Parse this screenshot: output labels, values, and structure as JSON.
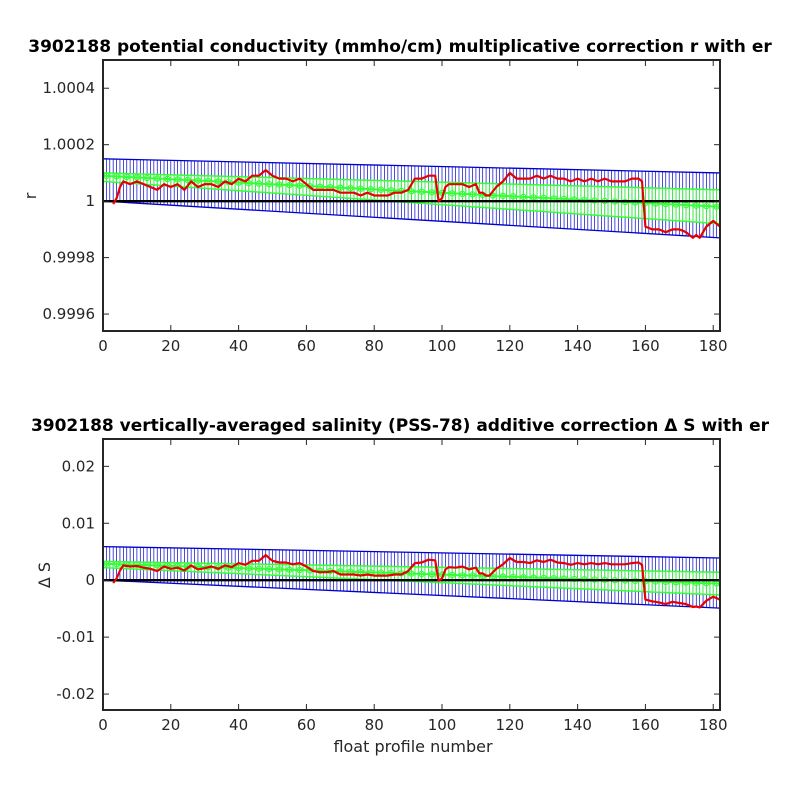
{
  "chart_data": [
    {
      "type": "line",
      "title": "3902188 potential conductivity (mmho/cm) multiplicative correction r with er",
      "xlabel": "",
      "ylabel": "r",
      "xlim": [
        0,
        182
      ],
      "ylim": [
        0.99954,
        1.0005
      ],
      "xticks": [
        0,
        20,
        40,
        60,
        80,
        100,
        120,
        140,
        160,
        180
      ],
      "yticks": [
        0.9996,
        0.9998,
        1,
        1.0002,
        1.0004
      ],
      "ytick_labels": [
        "0.9996",
        "0.9998",
        "1",
        "1.0002",
        "1.0004"
      ],
      "grid": false,
      "colors": {
        "reference": "#000000",
        "fit": "#33ff33",
        "error_bars": "#0000cc",
        "series": "#e60000"
      },
      "reference_line": 1,
      "fit_line": {
        "x": [
          0,
          182
        ],
        "y": [
          1.00009,
          0.99998
        ]
      },
      "fit_band": {
        "upper": [
          1.0001,
          1.00004
        ],
        "lower": [
          1.00007,
          0.99992
        ]
      },
      "error_envelope": {
        "x": [
          0,
          182
        ],
        "upper": [
          1.00015,
          1.0001
        ],
        "lower": [
          1.0,
          0.99987
        ]
      },
      "series": [
        {
          "x": [
            3,
            4,
            5,
            6,
            8,
            10,
            12,
            14,
            16,
            18,
            20,
            22,
            24,
            26,
            28,
            30,
            32,
            34,
            36,
            38,
            40,
            42,
            44,
            46,
            48,
            50,
            52,
            54,
            56,
            58,
            60,
            62,
            64,
            66,
            68,
            70,
            72,
            74,
            76,
            78,
            80,
            82,
            84,
            86,
            88,
            90,
            92,
            94,
            96,
            98,
            99,
            100,
            101,
            102,
            104,
            106,
            108,
            110,
            111,
            112,
            113,
            114,
            116,
            118,
            120,
            122,
            124,
            126,
            128,
            130,
            132,
            134,
            136,
            138,
            140,
            142,
            144,
            146,
            148,
            150,
            152,
            154,
            156,
            158,
            159,
            160,
            162,
            164,
            166,
            168,
            170,
            172,
            174,
            175,
            176,
            178,
            180,
            182
          ],
          "y": [
            0.99999,
            1.00001,
            1.00005,
            1.00007,
            1.00006,
            1.00007,
            1.00006,
            1.00005,
            1.00004,
            1.00006,
            1.00005,
            1.00006,
            1.00004,
            1.00007,
            1.00005,
            1.00006,
            1.00006,
            1.00005,
            1.00007,
            1.00006,
            1.00008,
            1.00007,
            1.00009,
            1.00009,
            1.00011,
            1.00009,
            1.00008,
            1.00008,
            1.00007,
            1.00008,
            1.00006,
            1.00004,
            1.00004,
            1.00004,
            1.00004,
            1.00003,
            1.00003,
            1.00003,
            1.00002,
            1.00003,
            1.00002,
            1.00002,
            1.00002,
            1.00003,
            1.00003,
            1.00004,
            1.00008,
            1.00008,
            1.00009,
            1.00009,
            1.0,
            1.00001,
            1.00005,
            1.00006,
            1.00006,
            1.00006,
            1.00005,
            1.00006,
            1.00003,
            1.00003,
            1.00002,
            1.00002,
            1.00005,
            1.00007,
            1.0001,
            1.00008,
            1.00008,
            1.00008,
            1.00009,
            1.00008,
            1.00009,
            1.00008,
            1.00008,
            1.00007,
            1.00008,
            1.00007,
            1.00008,
            1.00007,
            1.00008,
            1.00007,
            1.00007,
            1.00007,
            1.00008,
            1.00008,
            1.00007,
            0.99991,
            0.9999,
            0.9999,
            0.99989,
            0.9999,
            0.9999,
            0.99989,
            0.99987,
            0.99988,
            0.99987,
            0.99991,
            0.99993,
            0.99991
          ]
        }
      ]
    },
    {
      "type": "line",
      "title": "3902188 vertically-averaged salinity (PSS-78) additive correction Δ S with er",
      "xlabel": "float profile number",
      "ylabel": "Δ S",
      "xlim": [
        0,
        182
      ],
      "ylim": [
        -0.0228,
        0.0248
      ],
      "xticks": [
        0,
        20,
        40,
        60,
        80,
        100,
        120,
        140,
        160,
        180
      ],
      "yticks": [
        -0.02,
        -0.01,
        0,
        0.01,
        0.02
      ],
      "ytick_labels": [
        "-0.02",
        "-0.01",
        "0",
        "0.01",
        "0.02"
      ],
      "grid": false,
      "colors": {
        "reference": "#000000",
        "fit": "#33ff33",
        "error_bars": "#0000cc",
        "series": "#e60000"
      },
      "reference_line": 0,
      "fit_line": {
        "x": [
          0,
          182
        ],
        "y": [
          0.0029,
          -0.0006
        ]
      },
      "fit_band": {
        "upper": [
          0.0033,
          0.0014
        ],
        "lower": [
          0.0022,
          -0.0026
        ]
      },
      "error_envelope": {
        "x": [
          0,
          182
        ],
        "upper": [
          0.0059,
          0.0039
        ],
        "lower": [
          0.0,
          -0.0049
        ]
      },
      "series": [
        {
          "x": [
            3,
            4,
            5,
            6,
            8,
            10,
            12,
            14,
            16,
            18,
            20,
            22,
            24,
            26,
            28,
            30,
            32,
            34,
            36,
            38,
            40,
            42,
            44,
            46,
            48,
            50,
            52,
            54,
            56,
            58,
            60,
            62,
            64,
            66,
            68,
            70,
            72,
            74,
            76,
            78,
            80,
            82,
            84,
            86,
            88,
            90,
            92,
            94,
            96,
            98,
            99,
            100,
            101,
            102,
            104,
            106,
            108,
            110,
            111,
            112,
            113,
            114,
            116,
            118,
            120,
            122,
            124,
            126,
            128,
            130,
            132,
            134,
            136,
            138,
            140,
            142,
            144,
            146,
            148,
            150,
            152,
            154,
            156,
            158,
            159,
            160,
            162,
            164,
            166,
            168,
            170,
            172,
            174,
            175,
            176,
            178,
            180,
            182
          ],
          "y": [
            -0.0005,
            0.0003,
            0.0017,
            0.0026,
            0.0024,
            0.0025,
            0.0022,
            0.002,
            0.0016,
            0.0024,
            0.002,
            0.0022,
            0.0017,
            0.0026,
            0.0019,
            0.0021,
            0.0024,
            0.002,
            0.0026,
            0.0023,
            0.003,
            0.0027,
            0.0034,
            0.0034,
            0.0044,
            0.0034,
            0.0031,
            0.0031,
            0.0028,
            0.003,
            0.0024,
            0.0016,
            0.0014,
            0.0014,
            0.0016,
            0.001,
            0.001,
            0.001,
            0.0008,
            0.001,
            0.0008,
            0.0008,
            0.0008,
            0.001,
            0.001,
            0.0016,
            0.003,
            0.0031,
            0.0036,
            0.0035,
            -0.0001,
            0.0003,
            0.0019,
            0.0023,
            0.0022,
            0.0024,
            0.0019,
            0.0022,
            0.0012,
            0.0012,
            0.0008,
            0.0008,
            0.002,
            0.0028,
            0.0039,
            0.0032,
            0.0032,
            0.003,
            0.0035,
            0.0032,
            0.0036,
            0.0031,
            0.003,
            0.0027,
            0.003,
            0.0028,
            0.003,
            0.0028,
            0.003,
            0.0028,
            0.0028,
            0.0028,
            0.003,
            0.0031,
            0.0027,
            -0.0034,
            -0.0037,
            -0.0039,
            -0.0042,
            -0.0038,
            -0.004,
            -0.0042,
            -0.0047,
            -0.0046,
            -0.0048,
            -0.0036,
            -0.0029,
            -0.0034
          ]
        }
      ]
    }
  ]
}
